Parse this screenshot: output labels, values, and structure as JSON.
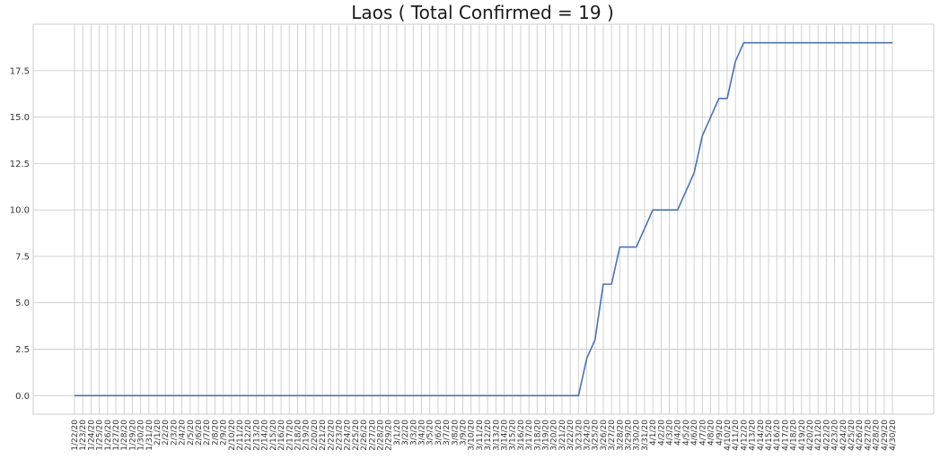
{
  "chart_data": {
    "type": "line",
    "title": "Laos ( Total Confirmed = 19 )",
    "xlabel": "",
    "ylabel": "",
    "x": [
      "1/22/20",
      "1/23/20",
      "1/24/20",
      "1/25/20",
      "1/26/20",
      "1/27/20",
      "1/28/20",
      "1/29/20",
      "1/30/20",
      "1/31/20",
      "2/1/20",
      "2/2/20",
      "2/3/20",
      "2/4/20",
      "2/5/20",
      "2/6/20",
      "2/7/20",
      "2/8/20",
      "2/9/20",
      "2/10/20",
      "2/11/20",
      "2/12/20",
      "2/13/20",
      "2/14/20",
      "2/15/20",
      "2/16/20",
      "2/17/20",
      "2/18/20",
      "2/19/20",
      "2/20/20",
      "2/21/20",
      "2/22/20",
      "2/23/20",
      "2/24/20",
      "2/25/20",
      "2/26/20",
      "2/27/20",
      "2/28/20",
      "2/29/20",
      "3/1/20",
      "3/2/20",
      "3/3/20",
      "3/4/20",
      "3/5/20",
      "3/6/20",
      "3/7/20",
      "3/8/20",
      "3/9/20",
      "3/10/20",
      "3/11/20",
      "3/12/20",
      "3/13/20",
      "3/14/20",
      "3/15/20",
      "3/16/20",
      "3/17/20",
      "3/18/20",
      "3/19/20",
      "3/20/20",
      "3/21/20",
      "3/22/20",
      "3/23/20",
      "3/24/20",
      "3/25/20",
      "3/26/20",
      "3/27/20",
      "3/28/20",
      "3/29/20",
      "3/30/20",
      "3/31/20",
      "4/1/20",
      "4/2/20",
      "4/3/20",
      "4/4/20",
      "4/5/20",
      "4/6/20",
      "4/7/20",
      "4/8/20",
      "4/9/20",
      "4/10/20",
      "4/11/20",
      "4/12/20",
      "4/13/20",
      "4/14/20",
      "4/15/20",
      "4/16/20",
      "4/17/20",
      "4/18/20",
      "4/19/20",
      "4/20/20",
      "4/21/20",
      "4/22/20",
      "4/23/20",
      "4/24/20",
      "4/25/20",
      "4/26/20",
      "4/27/20",
      "4/28/20",
      "4/29/20",
      "4/30/20"
    ],
    "series": [
      {
        "values": [
          0,
          0,
          0,
          0,
          0,
          0,
          0,
          0,
          0,
          0,
          0,
          0,
          0,
          0,
          0,
          0,
          0,
          0,
          0,
          0,
          0,
          0,
          0,
          0,
          0,
          0,
          0,
          0,
          0,
          0,
          0,
          0,
          0,
          0,
          0,
          0,
          0,
          0,
          0,
          0,
          0,
          0,
          0,
          0,
          0,
          0,
          0,
          0,
          0,
          0,
          0,
          0,
          0,
          0,
          0,
          0,
          0,
          0,
          0,
          0,
          0,
          0,
          2,
          3,
          6,
          6,
          8,
          8,
          8,
          9,
          10,
          10,
          10,
          10,
          11,
          12,
          14,
          15,
          16,
          16,
          18,
          19,
          19,
          19,
          19,
          19,
          19,
          19,
          19,
          19,
          19,
          19,
          19,
          19,
          19,
          19,
          19,
          19,
          19,
          19
        ],
        "color": "#4c72b0"
      }
    ],
    "yticks": [
      "0.0",
      "2.5",
      "5.0",
      "7.5",
      "10.0",
      "12.5",
      "15.0",
      "17.5"
    ],
    "ylim": [
      -1,
      20
    ],
    "grid": true,
    "legend": "none"
  }
}
